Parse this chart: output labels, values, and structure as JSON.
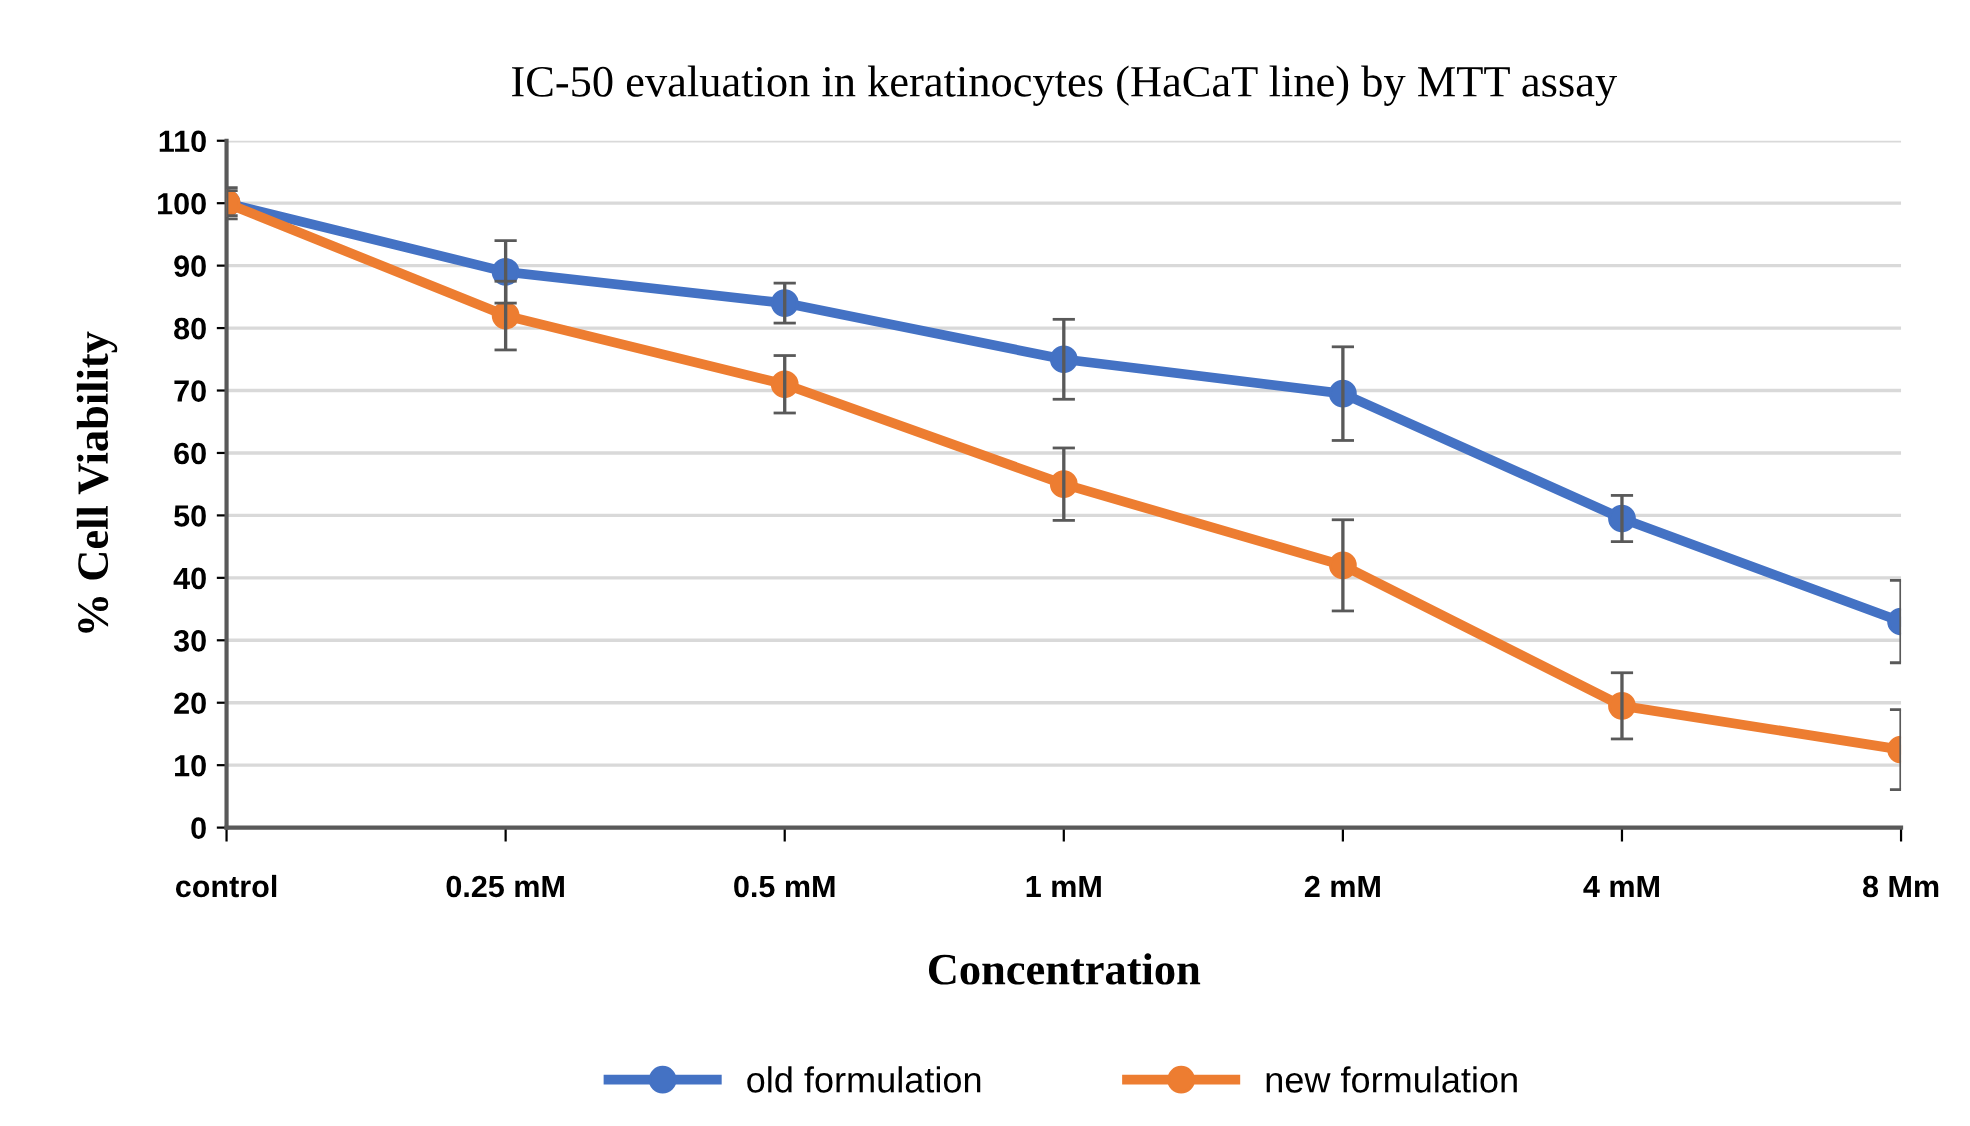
{
  "chart_data": {
    "type": "line",
    "title": "IC-50 evaluation in keratinocytes (HaCaT line) by MTT assay",
    "xlabel": "Concentration",
    "ylabel": "% Cell Viability",
    "categories": [
      "control",
      "0.25 mM",
      "0.5 mM",
      "1 mM",
      "2 mM",
      "4 mM",
      "8 Mm"
    ],
    "series": [
      {
        "name": "old formulation",
        "color": "#4472c4",
        "values": [
          100,
          89,
          84,
          75,
          69.5,
          49.5,
          33
        ],
        "errors": [
          2.5,
          5,
          3.2,
          6.4,
          7.5,
          3.7,
          6.6
        ]
      },
      {
        "name": "new formulation",
        "color": "#ed7d31",
        "values": [
          100,
          82,
          71,
          55,
          42,
          19.5,
          12.5
        ],
        "errors": [
          2,
          5.5,
          4.6,
          5.8,
          7.3,
          5.3,
          6.4
        ]
      }
    ],
    "ylim": [
      0,
      110
    ],
    "yticks": [
      0,
      10,
      20,
      30,
      40,
      50,
      60,
      70,
      80,
      90,
      100,
      110
    ],
    "grid": "y",
    "legend": "bottom",
    "marker": "circle",
    "line_style": "solid"
  }
}
